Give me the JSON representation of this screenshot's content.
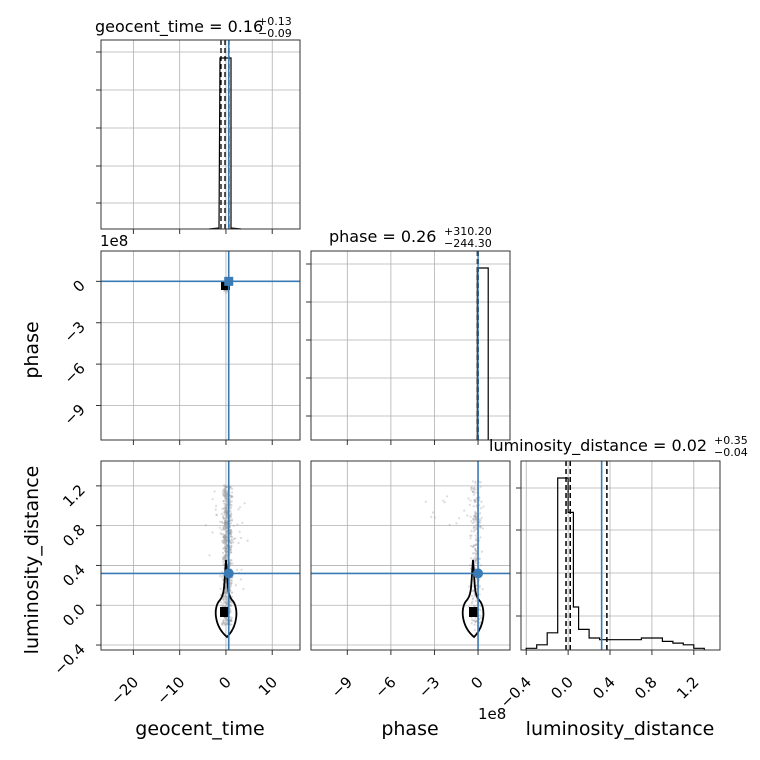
{
  "chart_data": {
    "type": "corner",
    "parameters": [
      "geocent_time",
      "phase",
      "luminosity_distance"
    ],
    "colors": {
      "truth": "#3b7bb5",
      "hist": "#000000",
      "grid": "#b0b0b0",
      "scatter": "#999999"
    },
    "grid": true,
    "diagonal": [
      {
        "parameter": "geocent_time",
        "title_main": "geocent_time = 0.16",
        "title_plus": "+0.13",
        "title_minus": "−0.09",
        "median": 0.16,
        "plus": 0.13,
        "minus": 0.09,
        "truth": 0.6,
        "xlim": [
          -27,
          16
        ],
        "bins": [
          -27,
          0.5,
          1.2,
          16
        ],
        "counts": [
          0.01,
          1.0,
          0.01
        ]
      },
      {
        "parameter": "phase",
        "title_main": "phase = 0.26",
        "title_plus": "+310.20",
        "title_minus": "−244.30",
        "median": 0.26,
        "plus": 310.2,
        "minus": 244.3,
        "truth": 0,
        "xlim": [
          -11.5,
          2.2
        ],
        "bins": [
          -0.05,
          0.7
        ],
        "counts": [
          1.0
        ]
      },
      {
        "parameter": "luminosity_distance",
        "title_main": "luminosity_distance = 0.02",
        "title_plus": "+0.35",
        "title_minus": "−0.04",
        "median": 0.02,
        "plus": 0.35,
        "minus": 0.04,
        "quantiles": [
          -0.02,
          0.02,
          0.37
        ],
        "truth": 0.32,
        "xlim": [
          -0.5,
          1.4
        ],
        "bins": [
          -0.4,
          -0.3,
          -0.2,
          -0.1,
          -0.05,
          0.0,
          0.05,
          0.1,
          0.2,
          0.3,
          0.4,
          0.5,
          0.6,
          0.7,
          0.8,
          0.9,
          1.0,
          1.1,
          1.2,
          1.3
        ],
        "counts": [
          0.01,
          0.03,
          0.1,
          1.0,
          1.0,
          0.8,
          0.25,
          0.12,
          0.07,
          0.06,
          0.06,
          0.06,
          0.06,
          0.07,
          0.07,
          0.05,
          0.04,
          0.03,
          0.01
        ]
      }
    ],
    "axes": {
      "geocent_time": {
        "ticks": [
          -20,
          -10,
          0,
          10
        ],
        "tick_labels": [
          "−20",
          "−10",
          "0",
          "10"
        ]
      },
      "phase": {
        "ticks": [
          -9,
          -6,
          -3,
          0
        ],
        "tick_labels": [
          "−9",
          "−6",
          "−3",
          "0"
        ],
        "offset": "1e8",
        "lim": [
          -11.5,
          2.2
        ]
      },
      "luminosity_distance": {
        "ticks": [
          -0.4,
          0.0,
          0.4,
          0.8,
          1.2
        ],
        "tick_labels": [
          "−0.4",
          "0.0",
          "0.4",
          "0.8",
          "1.2"
        ],
        "lim": [
          -0.45,
          1.45
        ]
      }
    },
    "x_offset_label": "1e8",
    "y_offset_label": "1e8",
    "x_axis_labels": [
      "geocent_time",
      "phase",
      "luminosity_distance"
    ],
    "y_axis_labels": [
      "phase",
      "luminosity_distance"
    ],
    "truth": {
      "geocent_time": 0.6,
      "phase": 0,
      "luminosity_distance": 0.32
    }
  }
}
